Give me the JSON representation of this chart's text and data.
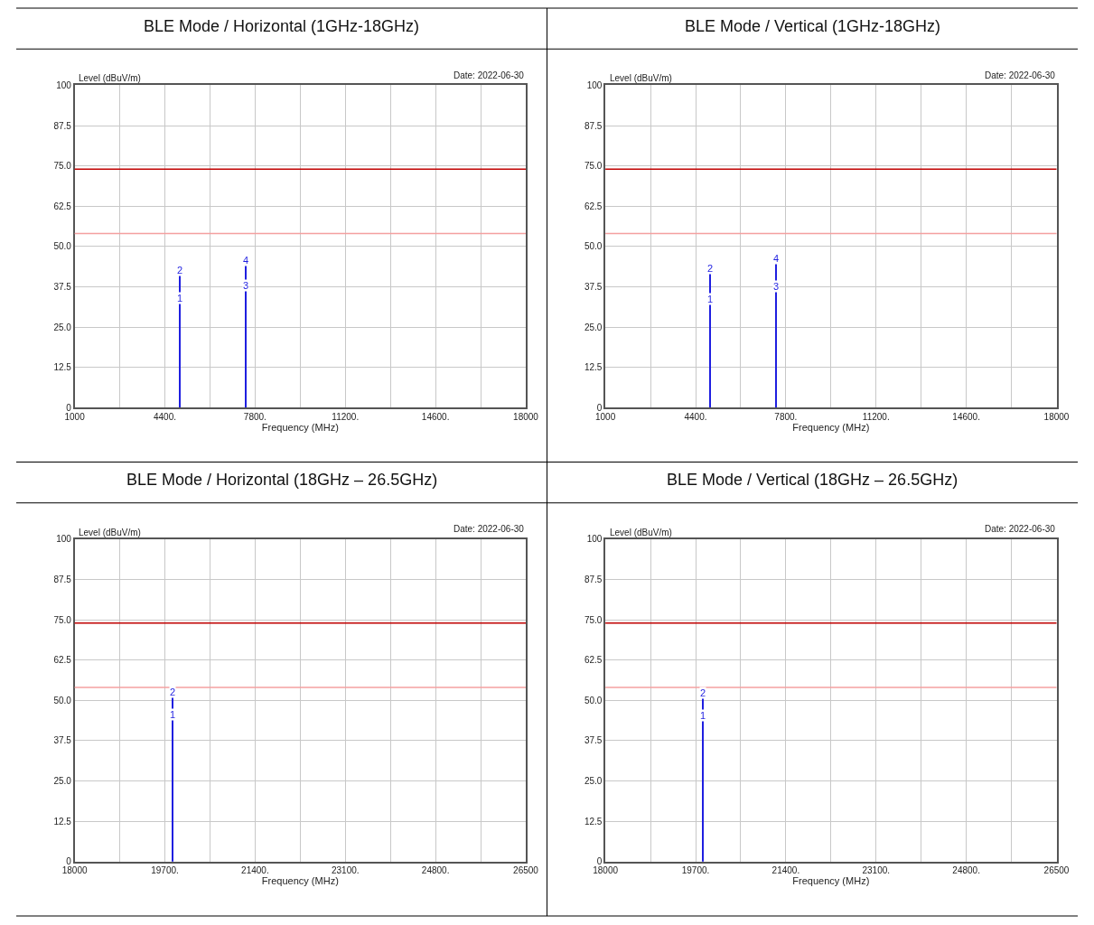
{
  "chart_data": [
    {
      "type": "bar",
      "title": "BLE Mode / Horizontal (1GHz-18GHz)",
      "xlabel": "Frequency (MHz)",
      "ylabel": "Level (dBuV/m)",
      "x": [
        4960,
        7440
      ],
      "values": [
        41.2,
        44.3
      ],
      "color": "#1f1fe0",
      "xlim": [
        1000,
        18000
      ],
      "xticks": [
        1000,
        {
          "value": 2700,
          "label": null
        },
        {
          "value": 4400,
          "label": "4400."
        },
        {
          "value": 6100,
          "label": null
        },
        {
          "value": 7800,
          "label": "7800."
        },
        {
          "value": 9500,
          "label": null
        },
        {
          "value": 11200,
          "label": "11200."
        },
        {
          "value": 12900,
          "label": null
        },
        {
          "value": 14600,
          "label": "14600."
        },
        {
          "value": 16300,
          "label": null
        },
        18000
      ],
      "ylim": [
        0,
        100
      ],
      "yticks": [
        0,
        12.5,
        {
          "value": 25,
          "label": "25.0"
        },
        37.5,
        {
          "value": 50,
          "label": "50.0"
        },
        62.5,
        {
          "value": 75,
          "label": "75.0"
        },
        87.5,
        100
      ],
      "grid": true,
      "ref_lines": [
        {
          "axis": "y",
          "value": 74,
          "color": "#c00000"
        },
        {
          "axis": "y",
          "value": 54,
          "color": "#f4a0a0"
        }
      ],
      "annotations": [
        "Date: 2022-06-30",
        {
          "text": "2",
          "x": 4960,
          "y": 41.2
        },
        {
          "text": "1",
          "x": 4960,
          "y": 32.5
        },
        {
          "text": "4",
          "x": 7440,
          "y": 44.3
        },
        {
          "text": "3",
          "x": 7440,
          "y": 36.4
        }
      ]
    },
    {
      "type": "bar",
      "title": "BLE Mode / Vertical (1GHz-18GHz)",
      "xlabel": "Frequency (MHz)",
      "ylabel": "Level (dBuV/m)",
      "x": [
        4960,
        7440
      ],
      "values": [
        41.8,
        44.8
      ],
      "color": "#1f1fe0",
      "xlim": [
        1000,
        18000
      ],
      "xticks": [
        1000,
        {
          "value": 2700,
          "label": null
        },
        {
          "value": 4400,
          "label": "4400."
        },
        {
          "value": 6100,
          "label": null
        },
        {
          "value": 7800,
          "label": "7800."
        },
        {
          "value": 9500,
          "label": null
        },
        {
          "value": 11200,
          "label": "11200."
        },
        {
          "value": 12900,
          "label": null
        },
        {
          "value": 14600,
          "label": "14600."
        },
        {
          "value": 16300,
          "label": null
        },
        18000
      ],
      "ylim": [
        0,
        100
      ],
      "yticks": [
        0,
        12.5,
        {
          "value": 25,
          "label": "25.0"
        },
        37.5,
        {
          "value": 50,
          "label": "50.0"
        },
        62.5,
        {
          "value": 75,
          "label": "75.0"
        },
        87.5,
        100
      ],
      "grid": true,
      "ref_lines": [
        {
          "axis": "y",
          "value": 74,
          "color": "#c00000"
        },
        {
          "axis": "y",
          "value": 54,
          "color": "#f4a0a0"
        }
      ],
      "annotations": [
        "Date: 2022-06-30",
        {
          "text": "2",
          "x": 4960,
          "y": 41.8
        },
        {
          "text": "1",
          "x": 4960,
          "y": 32.3
        },
        {
          "text": "4",
          "x": 7440,
          "y": 44.8
        },
        {
          "text": "3",
          "x": 7440,
          "y": 36.2
        }
      ]
    },
    {
      "type": "bar",
      "title": "BLE Mode / Horizontal (18GHz – 26.5GHz)",
      "xlabel": "Frequency (MHz)",
      "ylabel": "Level (dBuV/m)",
      "x": [
        19840
      ],
      "values": [
        51.3
      ],
      "color": "#1f1fe0",
      "xlim": [
        18000,
        26500
      ],
      "xticks": [
        18000,
        {
          "value": 18850,
          "label": null
        },
        {
          "value": 19700,
          "label": "19700."
        },
        {
          "value": 20550,
          "label": null
        },
        {
          "value": 21400,
          "label": "21400."
        },
        {
          "value": 22250,
          "label": null
        },
        {
          "value": 23100,
          "label": "23100."
        },
        {
          "value": 23950,
          "label": null
        },
        {
          "value": 24800,
          "label": "24800."
        },
        {
          "value": 25650,
          "label": null
        },
        26500
      ],
      "ylim": [
        0,
        100
      ],
      "yticks": [
        0,
        12.5,
        {
          "value": 25,
          "label": "25.0"
        },
        37.5,
        {
          "value": 50,
          "label": "50.0"
        },
        62.5,
        {
          "value": 75,
          "label": "75.0"
        },
        87.5,
        100
      ],
      "grid": true,
      "ref_lines": [
        {
          "axis": "y",
          "value": 74,
          "color": "#c00000"
        },
        {
          "axis": "y",
          "value": 54,
          "color": "#f4a0a0"
        }
      ],
      "annotations": [
        "Date: 2022-06-30",
        {
          "text": "2",
          "x": 19840,
          "y": 51.3
        },
        {
          "text": "1",
          "x": 19840,
          "y": 44.2
        }
      ]
    },
    {
      "type": "bar",
      "title": "BLE Mode / Vertical (18GHz – 26.5GHz)",
      "xlabel": "Frequency (MHz)",
      "ylabel": "Level (dBuV/m)",
      "x": [
        19840
      ],
      "values": [
        51.0
      ],
      "color": "#1f1fe0",
      "xlim": [
        18000,
        26500
      ],
      "xticks": [
        18000,
        {
          "value": 18850,
          "label": null
        },
        {
          "value": 19700,
          "label": "19700."
        },
        {
          "value": 20550,
          "label": null
        },
        {
          "value": 21400,
          "label": "21400."
        },
        {
          "value": 22250,
          "label": null
        },
        {
          "value": 23100,
          "label": "23100."
        },
        {
          "value": 23950,
          "label": null
        },
        {
          "value": 24800,
          "label": "24800."
        },
        {
          "value": 25650,
          "label": null
        },
        26500
      ],
      "ylim": [
        0,
        100
      ],
      "yticks": [
        0,
        12.5,
        {
          "value": 25,
          "label": "25.0"
        },
        37.5,
        {
          "value": 50,
          "label": "50.0"
        },
        62.5,
        {
          "value": 75,
          "label": "75.0"
        },
        87.5,
        100
      ],
      "grid": true,
      "ref_lines": [
        {
          "axis": "y",
          "value": 74,
          "color": "#c00000"
        },
        {
          "axis": "y",
          "value": 54,
          "color": "#f4a0a0"
        }
      ],
      "annotations": [
        "Date: 2022-06-30",
        {
          "text": "2",
          "x": 19840,
          "y": 51.0
        },
        {
          "text": "1",
          "x": 19840,
          "y": 43.8
        }
      ]
    }
  ]
}
